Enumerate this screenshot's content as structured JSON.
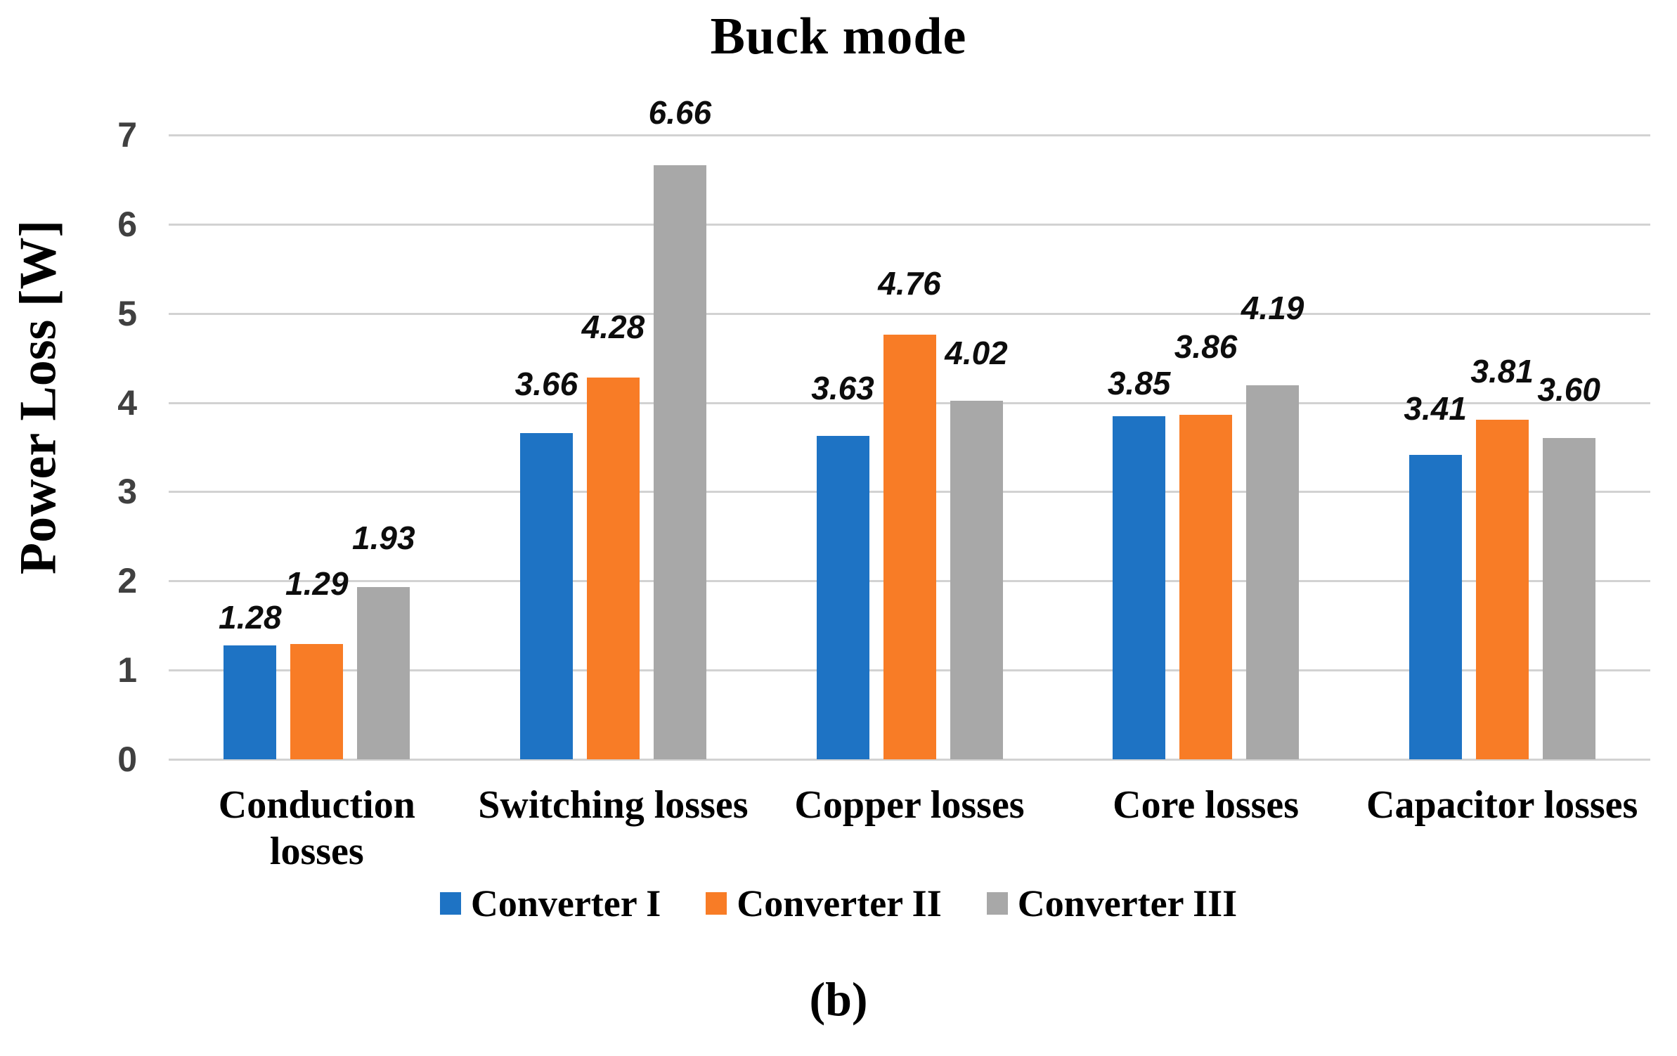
{
  "chart_data": {
    "type": "bar",
    "title": "Buck mode",
    "xlabel": "",
    "ylabel": "Power Loss [W]",
    "ylim": [
      0,
      7
    ],
    "y_ticks": [
      0,
      1,
      2,
      3,
      4,
      5,
      6,
      7
    ],
    "grid": "horizontal",
    "legend_position": "bottom",
    "categories": [
      "Conduction losses",
      "Switching losses",
      "Copper losses",
      "Core losses",
      "Capacitor losses"
    ],
    "series": [
      {
        "name": "Converter I",
        "color": "#1e73c4",
        "values": [
          1.28,
          3.66,
          3.63,
          3.85,
          3.41
        ]
      },
      {
        "name": "Converter II",
        "color": "#f87c26",
        "values": [
          1.29,
          4.28,
          4.76,
          3.86,
          3.81
        ]
      },
      {
        "name": "Converter III",
        "color": "#a8a8a8",
        "values": [
          1.93,
          6.66,
          4.02,
          4.19,
          3.6
        ]
      }
    ],
    "data_label_format": "0.00",
    "label_dy": [
      [
        15,
        61,
        45
      ],
      [
        45,
        47,
        50
      ],
      [
        43,
        48,
        43
      ],
      [
        22,
        72,
        85
      ],
      [
        41,
        44,
        44
      ]
    ]
  },
  "caption": "(b)",
  "colors": {
    "gridline": "#d2d2d2",
    "tick_label": "#404040",
    "data_label": "#0d0d0d"
  }
}
